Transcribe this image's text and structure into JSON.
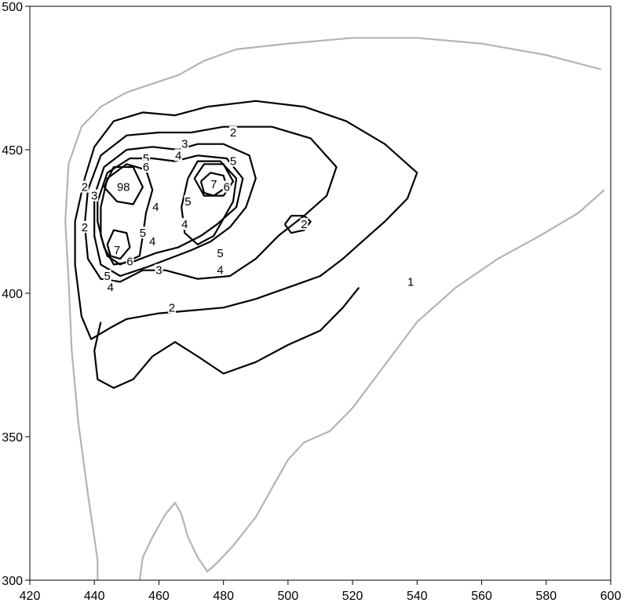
{
  "chart_data": {
    "type": "contour",
    "title": "",
    "xlabel": "",
    "ylabel": "",
    "xlim": [
      420,
      600
    ],
    "ylim": [
      300,
      500
    ],
    "xticks": [
      "420",
      "440",
      "460",
      "480",
      "500",
      "520",
      "540",
      "560",
      "580",
      "600"
    ],
    "yticks": [
      "300",
      "350",
      "400",
      "450",
      "500"
    ],
    "grid": false,
    "legend": "none",
    "colors": {
      "major_contour": "#000000",
      "minor_contour": "#b4b4b4",
      "background": "#ffffff"
    },
    "contours": [
      {
        "level": "outer",
        "style": "minor",
        "points": [
          [
            441,
            300
          ],
          [
            441,
            307
          ],
          [
            438,
            330
          ],
          [
            435,
            355
          ],
          [
            433,
            380
          ],
          [
            432,
            405
          ],
          [
            431,
            425
          ],
          [
            432,
            445
          ],
          [
            436,
            458
          ],
          [
            442,
            465
          ],
          [
            450,
            470
          ],
          [
            458,
            473
          ],
          [
            466,
            476
          ],
          [
            474,
            481
          ],
          [
            484,
            485
          ],
          [
            500,
            487
          ],
          [
            520,
            489
          ],
          [
            540,
            489
          ],
          [
            560,
            487
          ],
          [
            580,
            483
          ],
          [
            597,
            478
          ]
        ]
      },
      {
        "level": "outer-lower",
        "style": "minor",
        "points": [
          [
            454,
            300
          ],
          [
            455,
            308
          ],
          [
            458,
            315
          ],
          [
            462,
            323
          ],
          [
            465,
            327
          ],
          [
            467,
            323
          ],
          [
            469,
            315
          ],
          [
            472,
            308
          ],
          [
            475,
            303
          ],
          [
            478,
            306
          ],
          [
            483,
            312
          ],
          [
            490,
            322
          ],
          [
            496,
            334
          ],
          [
            500,
            342
          ],
          [
            505,
            348
          ],
          [
            513,
            352
          ],
          [
            520,
            360
          ],
          [
            530,
            375
          ],
          [
            540,
            390
          ],
          [
            552,
            402
          ],
          [
            565,
            412
          ],
          [
            578,
            420
          ],
          [
            590,
            428
          ],
          [
            598,
            436
          ]
        ]
      },
      {
        "level": "1",
        "style": "major",
        "points": [
          [
            437,
            440
          ],
          [
            440,
            451
          ],
          [
            446,
            460
          ],
          [
            455,
            463
          ],
          [
            465,
            462
          ],
          [
            475,
            465
          ],
          [
            490,
            467
          ],
          [
            505,
            465
          ],
          [
            518,
            460
          ],
          [
            530,
            452
          ],
          [
            540,
            442
          ],
          [
            537,
            433
          ],
          [
            530,
            425
          ],
          [
            523,
            418
          ],
          [
            517,
            412
          ],
          [
            510,
            406
          ],
          [
            500,
            402
          ],
          [
            490,
            398
          ],
          [
            480,
            395
          ],
          [
            470,
            394
          ],
          [
            460,
            393
          ],
          [
            450,
            391
          ],
          [
            445,
            388
          ],
          [
            439,
            384
          ],
          [
            436,
            392
          ],
          [
            434,
            410
          ],
          [
            434,
            425
          ],
          [
            437,
            440
          ]
        ]
      },
      {
        "level": "2",
        "style": "major",
        "points": [
          [
            438,
            436
          ],
          [
            442,
            448
          ],
          [
            450,
            455
          ],
          [
            460,
            456
          ],
          [
            470,
            456
          ],
          [
            480,
            458
          ],
          [
            495,
            458
          ],
          [
            507,
            454
          ],
          [
            515,
            444
          ],
          [
            512,
            434
          ],
          [
            505,
            427
          ],
          [
            497,
            420
          ],
          [
            490,
            412
          ],
          [
            482,
            406
          ],
          [
            472,
            405
          ],
          [
            462,
            408
          ],
          [
            455,
            408
          ],
          [
            448,
            404
          ],
          [
            442,
            405
          ],
          [
            438,
            412
          ],
          [
            437,
            424
          ],
          [
            438,
            436
          ]
        ]
      },
      {
        "level": "1-bottom",
        "style": "major",
        "points": [
          [
            442,
            390
          ],
          [
            440,
            380
          ],
          [
            441,
            370
          ],
          [
            446,
            367
          ],
          [
            452,
            370
          ],
          [
            458,
            378
          ],
          [
            465,
            383
          ],
          [
            472,
            378
          ],
          [
            480,
            372
          ],
          [
            490,
            376
          ],
          [
            500,
            382
          ],
          [
            510,
            387
          ],
          [
            517,
            395
          ],
          [
            522,
            402
          ]
        ]
      },
      {
        "level": "2-island",
        "style": "major",
        "points": [
          [
            499,
            424
          ],
          [
            501,
            427
          ],
          [
            505,
            427
          ],
          [
            507,
            425
          ],
          [
            505,
            422
          ],
          [
            501,
            421
          ],
          [
            499,
            424
          ]
        ]
      },
      {
        "level": "3",
        "style": "major",
        "points": [
          [
            440,
            434
          ],
          [
            443,
            444
          ],
          [
            450,
            450
          ],
          [
            458,
            451
          ],
          [
            466,
            450
          ],
          [
            472,
            452
          ],
          [
            480,
            452
          ],
          [
            488,
            448
          ],
          [
            490,
            440
          ],
          [
            487,
            430
          ],
          [
            482,
            423
          ],
          [
            476,
            418
          ],
          [
            470,
            415
          ],
          [
            463,
            412
          ],
          [
            456,
            409
          ],
          [
            448,
            406
          ],
          [
            442,
            410
          ],
          [
            440,
            420
          ],
          [
            440,
            434
          ]
        ]
      },
      {
        "level": "4",
        "style": "major",
        "points": [
          [
            441,
            432
          ],
          [
            444,
            442
          ],
          [
            451,
            447
          ],
          [
            458,
            447
          ],
          [
            465,
            446
          ],
          [
            472,
            448
          ],
          [
            481,
            447
          ],
          [
            486,
            440
          ],
          [
            484,
            430
          ],
          [
            478,
            424
          ],
          [
            473,
            420
          ],
          [
            466,
            416
          ],
          [
            459,
            414
          ],
          [
            452,
            411
          ],
          [
            446,
            410
          ],
          [
            443,
            416
          ],
          [
            441,
            425
          ],
          [
            441,
            432
          ]
        ]
      },
      {
        "level": "5-left",
        "style": "major",
        "points": [
          [
            442,
            430
          ],
          [
            444,
            440
          ],
          [
            450,
            445
          ],
          [
            456,
            443
          ],
          [
            458,
            436
          ],
          [
            456,
            428
          ],
          [
            455,
            420
          ],
          [
            454,
            413
          ],
          [
            448,
            410
          ],
          [
            444,
            413
          ],
          [
            442,
            420
          ],
          [
            442,
            430
          ]
        ]
      },
      {
        "level": "5-right",
        "style": "major",
        "points": [
          [
            469,
            440
          ],
          [
            472,
            446
          ],
          [
            479,
            446
          ],
          [
            484,
            440
          ],
          [
            483,
            432
          ],
          [
            480,
            426
          ],
          [
            477,
            420
          ],
          [
            472,
            417
          ],
          [
            468,
            421
          ],
          [
            467,
            430
          ],
          [
            469,
            440
          ]
        ]
      },
      {
        "level": "6-left",
        "style": "major",
        "points": [
          [
            443,
            437
          ],
          [
            446,
            444
          ],
          [
            452,
            444
          ],
          [
            455,
            437
          ],
          [
            452,
            431
          ],
          [
            447,
            432
          ],
          [
            443,
            437
          ]
        ]
      },
      {
        "level": "6-right",
        "style": "major",
        "points": [
          [
            471,
            440
          ],
          [
            474,
            445
          ],
          [
            480,
            445
          ],
          [
            483,
            439
          ],
          [
            480,
            434
          ],
          [
            474,
            434
          ],
          [
            471,
            440
          ]
        ]
      },
      {
        "level": "7-left",
        "style": "major",
        "points": [
          [
            444,
            417
          ],
          [
            446,
            422
          ],
          [
            450,
            421
          ],
          [
            451,
            416
          ],
          [
            448,
            412
          ],
          [
            445,
            413
          ],
          [
            444,
            417
          ]
        ]
      },
      {
        "level": "7-right",
        "style": "major",
        "points": [
          [
            473,
            439
          ],
          [
            476,
            442
          ],
          [
            480,
            441
          ],
          [
            481,
            437
          ],
          [
            477,
            434
          ],
          [
            474,
            435
          ],
          [
            473,
            439
          ]
        ]
      }
    ],
    "contour_labels": [
      {
        "text": "1",
        "x": 538,
        "y": 404
      },
      {
        "text": "2",
        "x": 483,
        "y": 456
      },
      {
        "text": "2",
        "x": 505,
        "y": 424
      },
      {
        "text": "2",
        "x": 437,
        "y": 437
      },
      {
        "text": "2",
        "x": 437,
        "y": 423
      },
      {
        "text": "2",
        "x": 464,
        "y": 395
      },
      {
        "text": "3",
        "x": 468,
        "y": 452
      },
      {
        "text": "3",
        "x": 440,
        "y": 434
      },
      {
        "text": "3",
        "x": 460,
        "y": 408
      },
      {
        "text": "4",
        "x": 466,
        "y": 448
      },
      {
        "text": "4",
        "x": 459,
        "y": 430
      },
      {
        "text": "4",
        "x": 468,
        "y": 424
      },
      {
        "text": "4",
        "x": 458,
        "y": 418
      },
      {
        "text": "4",
        "x": 479,
        "y": 408
      },
      {
        "text": "4",
        "x": 445,
        "y": 402
      },
      {
        "text": "5",
        "x": 456,
        "y": 447
      },
      {
        "text": "5",
        "x": 483,
        "y": 446
      },
      {
        "text": "5",
        "x": 469,
        "y": 432
      },
      {
        "text": "5",
        "x": 455,
        "y": 421
      },
      {
        "text": "5",
        "x": 479,
        "y": 414
      },
      {
        "text": "5",
        "x": 444,
        "y": 406
      },
      {
        "text": "6",
        "x": 456,
        "y": 444
      },
      {
        "text": "6",
        "x": 481,
        "y": 437
      },
      {
        "text": "6",
        "x": 451,
        "y": 411
      },
      {
        "text": "7",
        "x": 477,
        "y": 438
      },
      {
        "text": "7",
        "x": 447,
        "y": 415
      },
      {
        "text": "9",
        "x": 448,
        "y": 437
      },
      {
        "text": "8",
        "x": 450,
        "y": 437
      }
    ]
  }
}
